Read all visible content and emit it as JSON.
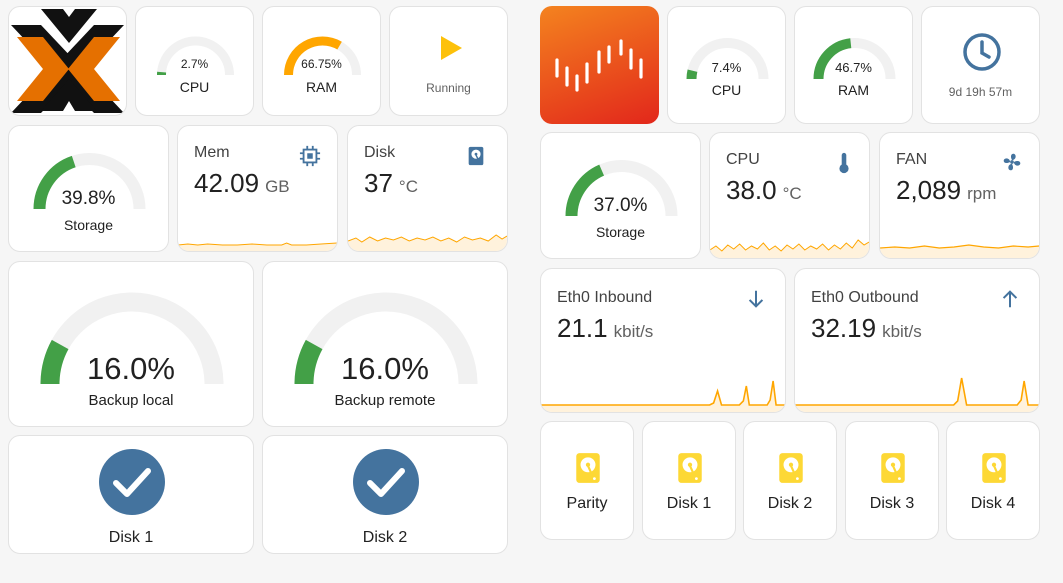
{
  "colors": {
    "green": "#43a047",
    "orange": "#ffa600",
    "blue": "#44739e",
    "drive": "#fdd835",
    "track": "#f1f1f1",
    "spark": "#ffa600"
  },
  "left": {
    "cpu": {
      "value": "2.7%",
      "label": "CPU",
      "percent": 2.7
    },
    "ram": {
      "value": "66.75%",
      "label": "RAM",
      "percent": 66.75
    },
    "status": {
      "label": "Running",
      "icon": "play-icon"
    },
    "storage": {
      "value": "39.8%",
      "label": "Storage",
      "percent": 39.8
    },
    "mem": {
      "title": "Mem",
      "value": "42.09",
      "unit": "GB",
      "icon": "chip-icon"
    },
    "disk_temp": {
      "title": "Disk",
      "value": "37",
      "unit": "°C",
      "icon": "harddisk-icon"
    },
    "backup_local": {
      "value": "16.0%",
      "label": "Backup local",
      "percent": 16.0
    },
    "backup_remote": {
      "value": "16.0%",
      "label": "Backup remote",
      "percent": 16.0
    },
    "disk1": {
      "label": "Disk 1",
      "icon": "check-circle-icon"
    },
    "disk2": {
      "label": "Disk 2",
      "icon": "check-circle-icon"
    }
  },
  "right": {
    "cpu": {
      "value": "7.4%",
      "label": "CPU",
      "percent": 7.4
    },
    "ram": {
      "value": "46.7%",
      "label": "RAM",
      "percent": 46.7
    },
    "uptime": {
      "value": "9d 19h 57m",
      "icon": "clock-icon"
    },
    "storage": {
      "value": "37.0%",
      "label": "Storage",
      "percent": 37.0
    },
    "cpu_temp": {
      "title": "CPU",
      "value": "38.0",
      "unit": "°C",
      "icon": "thermometer-icon"
    },
    "fan": {
      "title": "FAN",
      "value": "2,089",
      "unit": "rpm",
      "icon": "fan-icon"
    },
    "eth_in": {
      "title": "Eth0 Inbound",
      "value": "21.1",
      "unit": "kbit/s",
      "icon": "arrow-down-icon"
    },
    "eth_out": {
      "title": "Eth0 Outbound",
      "value": "32.19",
      "unit": "kbit/s",
      "icon": "arrow-up-icon"
    },
    "drives": [
      {
        "label": "Parity",
        "icon": "harddisk-icon"
      },
      {
        "label": "Disk 1",
        "icon": "harddisk-icon"
      },
      {
        "label": "Disk 2",
        "icon": "harddisk-icon"
      },
      {
        "label": "Disk 3",
        "icon": "harddisk-icon"
      },
      {
        "label": "Disk 4",
        "icon": "harddisk-icon"
      }
    ]
  }
}
